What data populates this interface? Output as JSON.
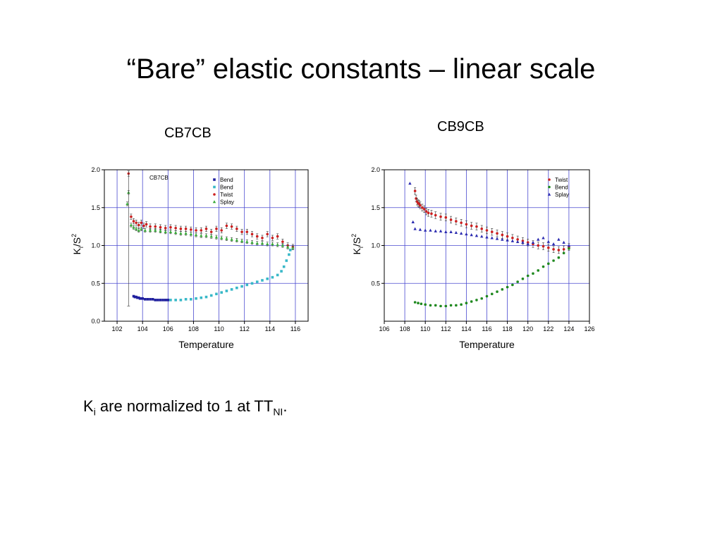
{
  "slide": {
    "title": "“Bare” elastic constants – linear scale",
    "left_caption": "CB7CB",
    "right_caption": "CB9CB",
    "note": {
      "main": "K",
      "sub1": "i",
      "mid": " are normalized to 1 at T",
      "sub2": "NI",
      "end": "."
    }
  },
  "chart_data": [
    {
      "type": "scatter",
      "title": "CB7CB",
      "xlabel": "Temperature",
      "ylabel_main": "K",
      "ylabel_sub": "i",
      "ylabel_rest": "/S",
      "ylabel_sup": "2",
      "xlim": [
        101,
        117
      ],
      "ylim": [
        0,
        2.0
      ],
      "xticks": [
        102,
        104,
        106,
        108,
        110,
        112,
        114,
        116
      ],
      "yticks": [
        0.0,
        0.5,
        1.0,
        1.5,
        2.0
      ],
      "ytick_labels": [
        "0.0",
        "0.5",
        "1.0",
        "1.5",
        "2.0"
      ],
      "grid": true,
      "legend_position": "top-right",
      "series": [
        {
          "name": "Bend",
          "color": "#1f1f9e",
          "marker": "square",
          "errorbar": 0,
          "points": [
            [
              103.3,
              0.33
            ],
            [
              103.4,
              0.32
            ],
            [
              103.5,
              0.32
            ],
            [
              103.6,
              0.31
            ],
            [
              103.7,
              0.31
            ],
            [
              103.8,
              0.3
            ],
            [
              103.9,
              0.3
            ],
            [
              104.0,
              0.3
            ],
            [
              104.2,
              0.29
            ],
            [
              104.4,
              0.29
            ],
            [
              104.6,
              0.29
            ],
            [
              104.8,
              0.29
            ],
            [
              105.0,
              0.28
            ],
            [
              105.2,
              0.28
            ],
            [
              105.4,
              0.28
            ],
            [
              105.6,
              0.28
            ],
            [
              105.8,
              0.28
            ],
            [
              106.0,
              0.28
            ]
          ]
        },
        {
          "name": "Bend",
          "color": "#38b8c8",
          "marker": "square",
          "errorbar": 0.008,
          "points": [
            [
              106.2,
              0.28
            ],
            [
              106.6,
              0.28
            ],
            [
              107.0,
              0.28
            ],
            [
              107.4,
              0.29
            ],
            [
              107.8,
              0.29
            ],
            [
              108.2,
              0.3
            ],
            [
              108.6,
              0.31
            ],
            [
              109.0,
              0.32
            ],
            [
              109.4,
              0.34
            ],
            [
              109.8,
              0.36
            ],
            [
              110.2,
              0.38
            ],
            [
              110.6,
              0.4
            ],
            [
              111.0,
              0.42
            ],
            [
              111.4,
              0.44
            ],
            [
              111.8,
              0.46
            ],
            [
              112.2,
              0.48
            ],
            [
              112.6,
              0.5
            ],
            [
              113.0,
              0.52
            ],
            [
              113.4,
              0.54
            ],
            [
              113.8,
              0.56
            ],
            [
              114.2,
              0.58
            ],
            [
              114.6,
              0.61
            ],
            [
              114.9,
              0.66
            ],
            [
              115.1,
              0.72
            ],
            [
              115.3,
              0.8
            ],
            [
              115.5,
              0.88
            ],
            [
              115.6,
              0.94
            ]
          ]
        },
        {
          "name": "Twist",
          "color": "#cc1f1f",
          "marker": "circle",
          "errorbar": 0.035,
          "points": [
            [
              102.9,
              1.95
            ],
            [
              103.1,
              1.38
            ],
            [
              103.3,
              1.32
            ],
            [
              103.5,
              1.3
            ],
            [
              103.7,
              1.27
            ],
            [
              103.9,
              1.3
            ],
            [
              104.1,
              1.26
            ],
            [
              104.3,
              1.28
            ],
            [
              104.6,
              1.25
            ],
            [
              105.0,
              1.25
            ],
            [
              105.4,
              1.24
            ],
            [
              105.8,
              1.23
            ],
            [
              106.2,
              1.24
            ],
            [
              106.6,
              1.23
            ],
            [
              107.0,
              1.22
            ],
            [
              107.4,
              1.22
            ],
            [
              107.8,
              1.21
            ],
            [
              108.2,
              1.2
            ],
            [
              108.6,
              1.2
            ],
            [
              109.0,
              1.22
            ],
            [
              109.4,
              1.18
            ],
            [
              109.8,
              1.22
            ],
            [
              110.2,
              1.2
            ],
            [
              110.6,
              1.26
            ],
            [
              111.0,
              1.25
            ],
            [
              111.4,
              1.22
            ],
            [
              111.8,
              1.18
            ],
            [
              112.2,
              1.18
            ],
            [
              112.6,
              1.15
            ],
            [
              113.0,
              1.12
            ],
            [
              113.4,
              1.1
            ],
            [
              113.8,
              1.15
            ],
            [
              114.2,
              1.1
            ],
            [
              114.6,
              1.12
            ],
            [
              115.0,
              1.05
            ],
            [
              115.4,
              1.0
            ],
            [
              115.8,
              0.98
            ]
          ]
        },
        {
          "name": "Splay",
          "color": "#3aaa3a",
          "marker": "triangle",
          "errorbar": 0.025,
          "points": [
            [
              102.8,
              1.55
            ],
            [
              102.9,
              1.7
            ],
            [
              103.1,
              1.27
            ],
            [
              103.3,
              1.24
            ],
            [
              103.5,
              1.22
            ],
            [
              103.7,
              1.2
            ],
            [
              103.9,
              1.22
            ],
            [
              104.2,
              1.2
            ],
            [
              104.6,
              1.2
            ],
            [
              105.0,
              1.2
            ],
            [
              105.4,
              1.19
            ],
            [
              105.8,
              1.18
            ],
            [
              106.2,
              1.18
            ],
            [
              106.6,
              1.17
            ],
            [
              107.0,
              1.16
            ],
            [
              107.4,
              1.16
            ],
            [
              107.8,
              1.15
            ],
            [
              108.2,
              1.14
            ],
            [
              108.6,
              1.13
            ],
            [
              109.0,
              1.13
            ],
            [
              109.4,
              1.12
            ],
            [
              109.8,
              1.11
            ],
            [
              110.2,
              1.1
            ],
            [
              110.6,
              1.09
            ],
            [
              111.0,
              1.08
            ],
            [
              111.4,
              1.07
            ],
            [
              111.8,
              1.06
            ],
            [
              112.2,
              1.05
            ],
            [
              112.6,
              1.04
            ],
            [
              113.0,
              1.03
            ],
            [
              113.4,
              1.03
            ],
            [
              113.8,
              1.02
            ],
            [
              114.2,
              1.02
            ],
            [
              114.6,
              1.01
            ],
            [
              115.0,
              1.0
            ],
            [
              115.4,
              0.98
            ],
            [
              115.8,
              0.97
            ]
          ]
        }
      ]
    },
    {
      "type": "scatter",
      "title": "",
      "xlabel": "Temperature",
      "ylabel_main": "K",
      "ylabel_sub": "i",
      "ylabel_rest": "/S",
      "ylabel_sup": "2",
      "xlim": [
        106,
        126
      ],
      "ylim": [
        0,
        2.0
      ],
      "xticks": [
        106,
        108,
        110,
        112,
        114,
        116,
        118,
        120,
        122,
        124,
        126
      ],
      "yticks": [
        0.5,
        1.0,
        1.5,
        2.0
      ],
      "ytick_labels": [
        "0.5",
        "1.0",
        "1.5",
        "2.0"
      ],
      "grid": true,
      "legend_position": "top-right",
      "series": [
        {
          "name": "Twist",
          "color": "#cc1f1f",
          "marker": "circle",
          "errorbar": 0.045,
          "points": [
            [
              109.0,
              1.72
            ],
            [
              109.1,
              1.62
            ],
            [
              109.2,
              1.58
            ],
            [
              109.3,
              1.56
            ],
            [
              109.4,
              1.55
            ],
            [
              109.5,
              1.53
            ],
            [
              109.7,
              1.5
            ],
            [
              109.9,
              1.48
            ],
            [
              110.1,
              1.45
            ],
            [
              110.3,
              1.43
            ],
            [
              110.6,
              1.42
            ],
            [
              111.0,
              1.4
            ],
            [
              111.5,
              1.38
            ],
            [
              112.0,
              1.37
            ],
            [
              112.5,
              1.34
            ],
            [
              113.0,
              1.32
            ],
            [
              113.5,
              1.3
            ],
            [
              114.0,
              1.28
            ],
            [
              114.5,
              1.26
            ],
            [
              115.0,
              1.25
            ],
            [
              115.5,
              1.22
            ],
            [
              116.0,
              1.2
            ],
            [
              116.5,
              1.18
            ],
            [
              117.0,
              1.16
            ],
            [
              117.5,
              1.14
            ],
            [
              118.0,
              1.12
            ],
            [
              118.5,
              1.1
            ],
            [
              119.0,
              1.08
            ],
            [
              119.5,
              1.06
            ],
            [
              120.0,
              1.04
            ],
            [
              120.5,
              1.02
            ],
            [
              121.0,
              1.0
            ],
            [
              121.5,
              0.99
            ],
            [
              122.0,
              0.97
            ],
            [
              122.5,
              0.95
            ],
            [
              123.0,
              0.94
            ],
            [
              123.5,
              0.95
            ],
            [
              124.0,
              0.98
            ]
          ]
        },
        {
          "name": "Bend",
          "color": "#1f8a1f",
          "marker": "circle",
          "errorbar": 0.01,
          "points": [
            [
              109.0,
              0.25
            ],
            [
              109.3,
              0.24
            ],
            [
              109.6,
              0.23
            ],
            [
              110.0,
              0.22
            ],
            [
              110.5,
              0.21
            ],
            [
              111.0,
              0.21
            ],
            [
              111.5,
              0.2
            ],
            [
              112.0,
              0.2
            ],
            [
              112.5,
              0.21
            ],
            [
              113.0,
              0.21
            ],
            [
              113.5,
              0.22
            ],
            [
              114.0,
              0.24
            ],
            [
              114.5,
              0.26
            ],
            [
              115.0,
              0.28
            ],
            [
              115.5,
              0.3
            ],
            [
              116.0,
              0.33
            ],
            [
              116.5,
              0.36
            ],
            [
              117.0,
              0.39
            ],
            [
              117.5,
              0.42
            ],
            [
              118.0,
              0.45
            ],
            [
              118.5,
              0.48
            ],
            [
              119.0,
              0.52
            ],
            [
              119.5,
              0.56
            ],
            [
              120.0,
              0.6
            ],
            [
              120.5,
              0.63
            ],
            [
              121.0,
              0.67
            ],
            [
              121.5,
              0.72
            ],
            [
              122.0,
              0.76
            ],
            [
              122.5,
              0.8
            ],
            [
              123.0,
              0.84
            ],
            [
              123.5,
              0.9
            ],
            [
              124.0,
              0.96
            ]
          ]
        },
        {
          "name": "Splay",
          "color": "#2b2bb0",
          "marker": "triangle",
          "errorbar": 0,
          "points": [
            [
              108.5,
              1.82
            ],
            [
              108.8,
              1.31
            ],
            [
              109.0,
              1.22
            ],
            [
              109.5,
              1.21
            ],
            [
              110.0,
              1.2
            ],
            [
              110.5,
              1.2
            ],
            [
              111.0,
              1.19
            ],
            [
              111.5,
              1.19
            ],
            [
              112.0,
              1.18
            ],
            [
              112.5,
              1.18
            ],
            [
              113.0,
              1.17
            ],
            [
              113.5,
              1.16
            ],
            [
              114.0,
              1.15
            ],
            [
              114.5,
              1.14
            ],
            [
              115.0,
              1.13
            ],
            [
              115.5,
              1.12
            ],
            [
              116.0,
              1.11
            ],
            [
              116.5,
              1.1
            ],
            [
              117.0,
              1.09
            ],
            [
              117.5,
              1.08
            ],
            [
              118.0,
              1.07
            ],
            [
              118.5,
              1.06
            ],
            [
              119.0,
              1.05
            ],
            [
              119.5,
              1.04
            ],
            [
              120.0,
              1.02
            ],
            [
              120.5,
              1.04
            ],
            [
              121.0,
              1.08
            ],
            [
              121.5,
              1.1
            ],
            [
              122.0,
              1.05
            ],
            [
              122.5,
              1.02
            ],
            [
              123.0,
              1.08
            ],
            [
              123.5,
              1.04
            ],
            [
              124.0,
              1.0
            ]
          ]
        }
      ]
    }
  ]
}
